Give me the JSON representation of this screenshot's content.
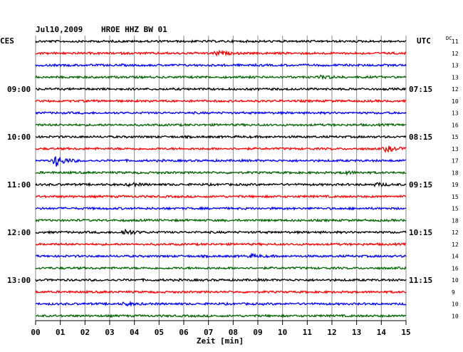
{
  "header": {
    "date": "Jul10,2009",
    "station": "HROE HHZ BW 01",
    "left_zone": "CES",
    "right_zone": "UTC",
    "dc_label": "DC"
  },
  "chart_data": {
    "type": "line",
    "xlabel": "Zeit [min]",
    "xlim": [
      0,
      15
    ],
    "x_ticks": [
      "00",
      "01",
      "02",
      "03",
      "04",
      "05",
      "06",
      "07",
      "08",
      "09",
      "10",
      "11",
      "12",
      "13",
      "14",
      "15"
    ],
    "trace_colors": [
      "#000000",
      "#ff0000",
      "#0000ff",
      "#006400"
    ],
    "left_time_labels": [
      {
        "trace": 4,
        "text": "09:00"
      },
      {
        "trace": 8,
        "text": "10:00"
      },
      {
        "trace": 12,
        "text": "11:00"
      },
      {
        "trace": 16,
        "text": "12:00"
      },
      {
        "trace": 20,
        "text": "13:00"
      }
    ],
    "right_time_labels": [
      {
        "trace": 4,
        "text": "07:15"
      },
      {
        "trace": 8,
        "text": "08:15"
      },
      {
        "trace": 12,
        "text": "09:15"
      },
      {
        "trace": 16,
        "text": "10:15"
      },
      {
        "trace": 20,
        "text": "11:15"
      }
    ],
    "dc_values": [
      11,
      12,
      13,
      13,
      12,
      10,
      13,
      16,
      15,
      13,
      17,
      18,
      19,
      15,
      15,
      18,
      12,
      12,
      14,
      16,
      10,
      9,
      10,
      10
    ],
    "events": [
      {
        "trace": 1,
        "minute": 7.3,
        "amp": 3
      },
      {
        "trace": 3,
        "minute": 11.6,
        "amp": 2
      },
      {
        "trace": 9,
        "minute": 14.2,
        "amp": 4
      },
      {
        "trace": 10,
        "minute": 0.8,
        "amp": 8
      },
      {
        "trace": 11,
        "minute": 12.5,
        "amp": 2
      },
      {
        "trace": 12,
        "minute": 3.8,
        "amp": 2
      },
      {
        "trace": 12,
        "minute": 13.8,
        "amp": 2
      },
      {
        "trace": 16,
        "minute": 3.6,
        "amp": 4
      },
      {
        "trace": 18,
        "minute": 8.7,
        "amp": 2
      },
      {
        "trace": 22,
        "minute": 3.6,
        "amp": 2
      }
    ]
  }
}
